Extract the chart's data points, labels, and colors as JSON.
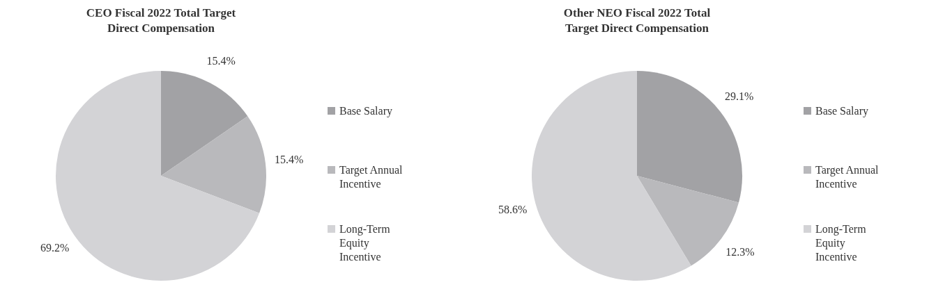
{
  "chart_data": [
    {
      "type": "pie",
      "title": "CEO Fiscal 2022 Total Target Direct Compensation",
      "categories": [
        "Base Salary",
        "Target Annual Incentive",
        "Long-Term Equity Incentive"
      ],
      "values": [
        15.4,
        15.4,
        69.2
      ],
      "colors": [
        "#a2a2a5",
        "#b9b9bc",
        "#d3d3d6"
      ],
      "value_labels": [
        "15.4%",
        "15.4%",
        "69.2%"
      ],
      "legend": "right"
    },
    {
      "type": "pie",
      "title": "Other NEO Fiscal 2022 Total Target Direct Compensation",
      "categories": [
        "Base Salary",
        "Target Annual Incentive",
        "Long-Term Equity Incentive"
      ],
      "values": [
        29.1,
        12.3,
        58.6
      ],
      "colors": [
        "#a2a2a5",
        "#b9b9bc",
        "#d3d3d6"
      ],
      "value_labels": [
        "29.1%",
        "12.3%",
        "58.6%"
      ],
      "legend": "right"
    }
  ]
}
